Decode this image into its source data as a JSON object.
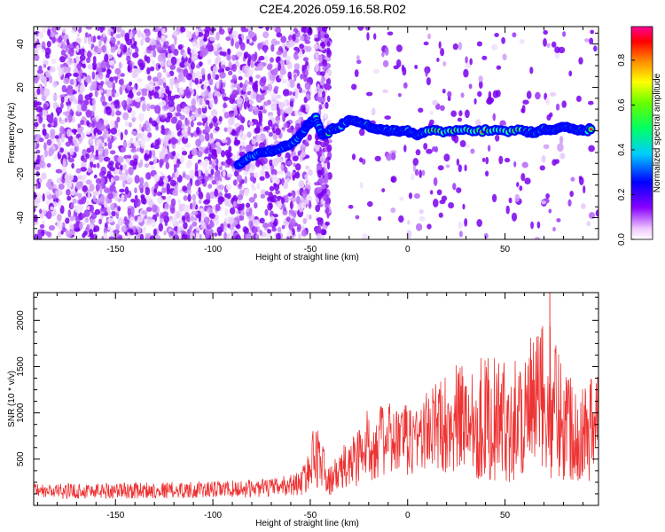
{
  "title": "C2E4.2026.059.16.58.R02",
  "colors": {
    "line": "#ee3333",
    "axis": "#000000",
    "background": "#ffffff"
  },
  "chart_data": [
    {
      "type": "heatmap",
      "title": "",
      "xlabel": "Height of straight line (km)",
      "ylabel": "Frequency (Hz)",
      "xlim": [
        -192,
        98
      ],
      "ylim": [
        -50,
        48
      ],
      "xticks": [
        -150,
        -100,
        -50,
        0,
        50
      ],
      "yticks": [
        -40,
        -20,
        0,
        20,
        40
      ],
      "ridge": {
        "x": [
          -87,
          -82,
          -75,
          -70,
          -65,
          -60,
          -55,
          -52,
          -50,
          -47,
          -44,
          -40,
          -35,
          -30,
          -25,
          -20,
          -15,
          -10,
          -5,
          0,
          5,
          10,
          20,
          30,
          40,
          50,
          60,
          65,
          70,
          75,
          80,
          85,
          90,
          95
        ],
        "y": [
          -16,
          -12,
          -10,
          -9,
          -8,
          -6,
          -2,
          2,
          4,
          6,
          -2,
          0,
          2,
          5,
          4,
          2,
          1,
          0,
          0,
          0,
          -2,
          0,
          0,
          0,
          0,
          0,
          0,
          -1,
          1,
          0,
          2,
          1,
          0,
          1
        ]
      },
      "colorbar": {
        "label": "Normalized spectral amplitude",
        "ticks": [
          0.0,
          0.2,
          0.4,
          0.6,
          0.8
        ],
        "tick_labels": [
          "0.0",
          "0.2",
          "0.4",
          "0.6",
          "0.8"
        ],
        "range": [
          0,
          0.95
        ]
      }
    },
    {
      "type": "line",
      "title": "",
      "xlabel": "Height of straight line (km)",
      "ylabel": "SNR (10 * v/v)",
      "xlim": [
        -192,
        98
      ],
      "ylim": [
        0,
        2300
      ],
      "xticks": [
        -150,
        -100,
        -50,
        0,
        50
      ],
      "yticks": [
        500,
        1000,
        1500,
        2000
      ],
      "series": [
        {
          "name": "SNR",
          "envelope": {
            "x": [
              -192,
              -150,
              -100,
              -70,
              -55,
              -50,
              -47,
              -44,
              -41,
              -38,
              -35,
              -30,
              -25,
              -20,
              -15,
              -10,
              0,
              10,
              20,
              30,
              40,
              50,
              60,
              65,
              70,
              75,
              80,
              85,
              90,
              95,
              98
            ],
            "mean": [
              150,
              160,
              170,
              190,
              240,
              400,
              600,
              450,
              250,
              300,
              350,
              450,
              550,
              650,
              700,
              700,
              700,
              800,
              900,
              950,
              950,
              900,
              1000,
              1050,
              1150,
              1100,
              950,
              850,
              800,
              850,
              900
            ],
            "spread": [
              80,
              90,
              90,
              100,
              130,
              250,
              400,
              300,
              150,
              180,
              220,
              300,
              350,
              400,
              400,
              400,
              400,
              450,
              550,
              650,
              700,
              650,
              750,
              800,
              900,
              800,
              700,
              600,
              550,
              600,
              650
            ]
          }
        }
      ]
    }
  ]
}
